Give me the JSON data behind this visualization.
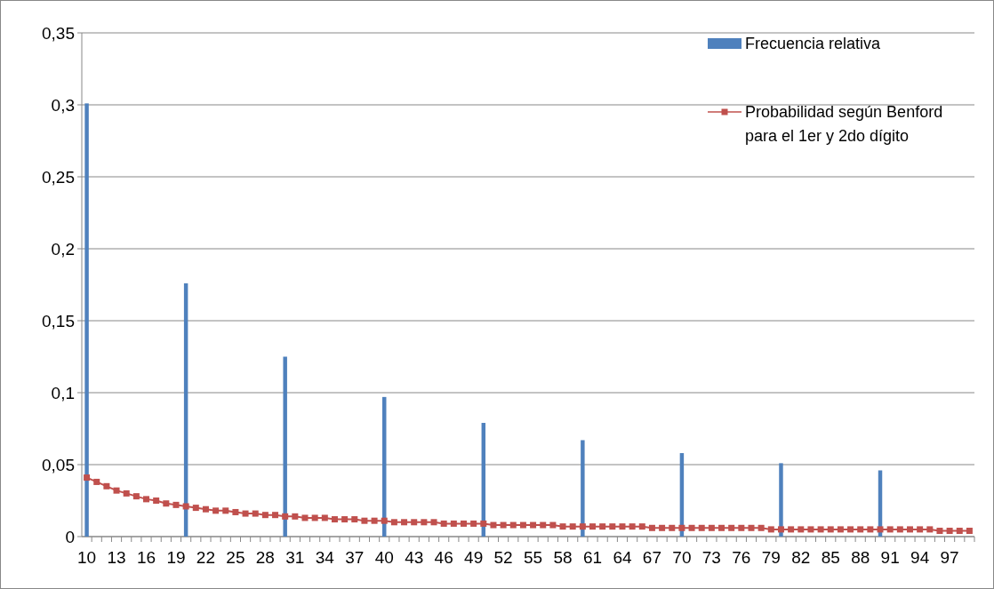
{
  "chart_data": {
    "type": "bar",
    "categories": [
      "10",
      null,
      null,
      "13",
      null,
      null,
      "16",
      null,
      null,
      "19",
      null,
      null,
      "22",
      null,
      null,
      "25",
      null,
      null,
      "28",
      null,
      null,
      "31",
      null,
      null,
      "34",
      null,
      null,
      "37",
      null,
      null,
      "40",
      null,
      null,
      "43",
      null,
      null,
      "46",
      null,
      null,
      "49",
      null,
      null,
      "52",
      null,
      null,
      "55",
      null,
      null,
      "58",
      null,
      null,
      "61",
      null,
      null,
      "64",
      null,
      null,
      "67",
      null,
      null,
      "70",
      null,
      null,
      "73",
      null,
      null,
      "76",
      null,
      null,
      "79",
      null,
      null,
      "82",
      null,
      null,
      "85",
      null,
      null,
      "88",
      null,
      null,
      "91",
      null,
      null,
      "94",
      null,
      null,
      "97",
      null,
      null
    ],
    "series": [
      {
        "name": "Frecuencia relativa",
        "color": "#4f81bd",
        "values": [
          0.301,
          null,
          null,
          null,
          null,
          null,
          null,
          null,
          null,
          null,
          0.176,
          null,
          null,
          null,
          null,
          null,
          null,
          null,
          null,
          null,
          0.125,
          null,
          null,
          null,
          null,
          null,
          null,
          null,
          null,
          null,
          0.097,
          null,
          null,
          null,
          null,
          null,
          null,
          null,
          null,
          null,
          0.079,
          null,
          null,
          null,
          null,
          null,
          null,
          null,
          null,
          null,
          0.067,
          null,
          null,
          null,
          null,
          null,
          null,
          null,
          null,
          null,
          0.058,
          null,
          null,
          null,
          null,
          null,
          null,
          null,
          null,
          null,
          0.051,
          null,
          null,
          null,
          null,
          null,
          null,
          null,
          null,
          null,
          0.046,
          null,
          null,
          null,
          null,
          null,
          null,
          null,
          null,
          null
        ]
      },
      {
        "name": "Probabilidad según Benford para el 1er y 2do dígito",
        "type": "line",
        "color": "#c0504d",
        "values": [
          0.041,
          0.038,
          0.035,
          0.032,
          0.03,
          0.028,
          0.026,
          0.025,
          0.023,
          0.022,
          0.021,
          0.02,
          0.019,
          0.018,
          0.018,
          0.017,
          0.016,
          0.016,
          0.015,
          0.015,
          0.014,
          0.014,
          0.013,
          0.013,
          0.013,
          0.012,
          0.012,
          0.012,
          0.011,
          0.011,
          0.011,
          0.01,
          0.01,
          0.01,
          0.01,
          0.01,
          0.009,
          0.009,
          0.009,
          0.009,
          0.009,
          0.008,
          0.008,
          0.008,
          0.008,
          0.008,
          0.008,
          0.008,
          0.007,
          0.007,
          0.007,
          0.007,
          0.007,
          0.007,
          0.007,
          0.007,
          0.007,
          0.006,
          0.006,
          0.006,
          0.006,
          0.006,
          0.006,
          0.006,
          0.006,
          0.006,
          0.006,
          0.006,
          0.006,
          0.005,
          0.005,
          0.005,
          0.005,
          0.005,
          0.005,
          0.005,
          0.005,
          0.005,
          0.005,
          0.005,
          0.005,
          0.005,
          0.005,
          0.005,
          0.005,
          0.005,
          0.004,
          0.004,
          0.004,
          0.004
        ]
      }
    ],
    "ylim": [
      0,
      0.35
    ],
    "yticks": [
      0,
      {
        "value": 0.05,
        "label": "0,05"
      },
      {
        "value": 0.1,
        "label": "0,1"
      },
      {
        "value": 0.15,
        "label": "0,15"
      },
      {
        "value": 0.2,
        "label": "0,2"
      },
      {
        "value": 0.25,
        "label": "0,25"
      },
      {
        "value": 0.3,
        "label": "0,3"
      },
      {
        "value": 0.35,
        "label": "0,35"
      }
    ],
    "grid": "y",
    "legend": "top right",
    "marker": "square",
    "line_style": "solid"
  }
}
